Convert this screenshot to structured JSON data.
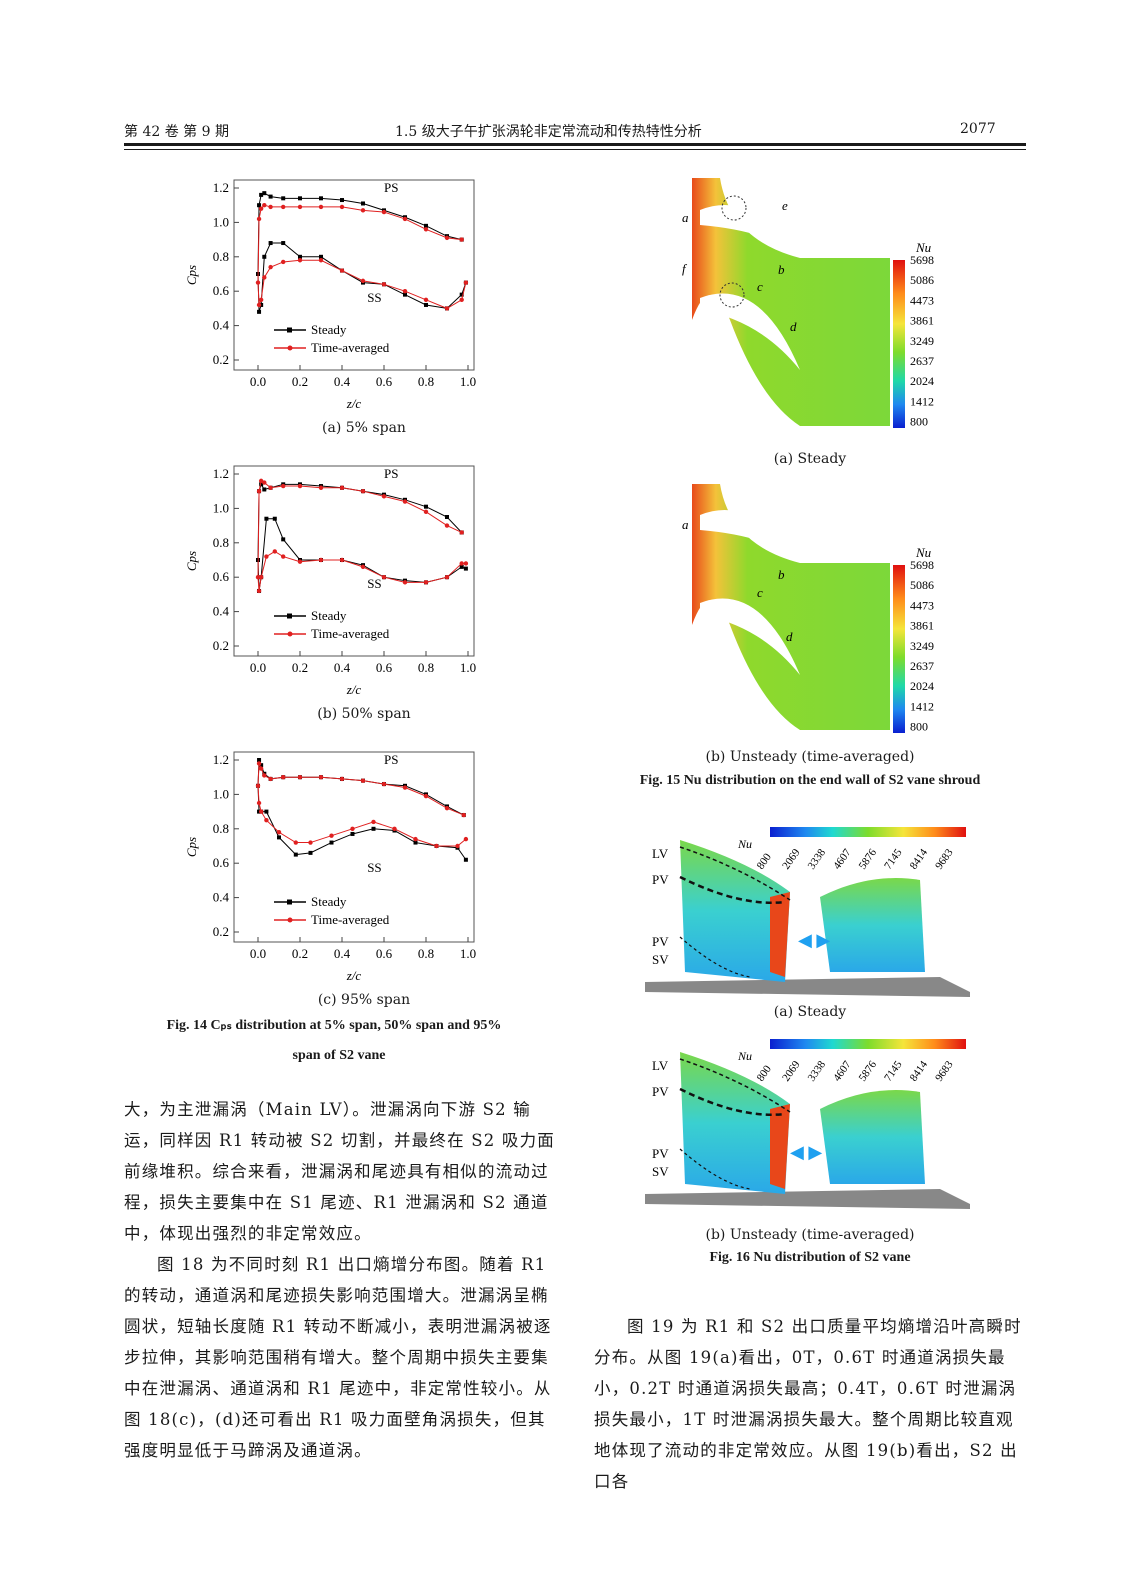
{
  "header": {
    "volume_issue": "第 42 卷   第 9 期",
    "title": "1.5 级大子午扩张涡轮非定常流动和传热特性分析",
    "page_number": "2077"
  },
  "fig14": {
    "panels": [
      {
        "label": "(a) 5% span",
        "ps_label": "PS",
        "ss_label": "SS"
      },
      {
        "label": "(b) 50% span",
        "ps_label": "PS",
        "ss_label": "SS"
      },
      {
        "label": "(c) 95% span",
        "ps_label": "PS",
        "ss_label": "SS"
      }
    ],
    "caption_line1": "Fig. 14    Cₚₛ distribution at 5% span, 50% span and 95%",
    "caption_line2": "span of S2 vane"
  },
  "fig15": {
    "panels": [
      {
        "label": "(a) Steady"
      },
      {
        "label": "(b) Unsteady (time-averaged)"
      }
    ],
    "annotations": [
      "a",
      "b",
      "c",
      "d",
      "e",
      "f"
    ],
    "colorbar_title": "Nu",
    "colorbar_ticks": [
      "5698",
      "5086",
      "4473",
      "3861",
      "3249",
      "2637",
      "2024",
      "1412",
      "800"
    ],
    "caption": "Fig. 15    Nu distribution on the end wall of S2 vane shroud"
  },
  "fig16": {
    "panels": [
      {
        "label": "(a) Steady"
      },
      {
        "label": "(b) Unsteady (time-averaged)"
      }
    ],
    "colorbar_title": "Nu",
    "colorbar_ticks": [
      "800",
      "2069",
      "3338",
      "4607",
      "5876",
      "7145",
      "8414",
      "9683"
    ],
    "vortex_labels": [
      "LV",
      "PV",
      "PV",
      "SV"
    ],
    "caption": "Fig. 16    Nu distribution of S2 vane"
  },
  "left_text": [
    "大，为主泄漏涡（Main LV）。泄漏涡向下游 S2 输运，同样因 R1 转动被 S2 切割，并最终在 S2 吸力面前缘堆积。综合来看，泄漏涡和尾迹具有相似的流动过程，损失主要集中在 S1 尾迹、R1 泄漏涡和 S2 通道中，体现出强烈的非定常效应。",
    "图 18 为不同时刻 R1 出口熵增分布图。随着 R1 的转动，通道涡和尾迹损失影响范围增大。泄漏涡呈椭圆状，短轴长度随 R1 转动不断减小，表明泄漏涡被逐步拉伸，其影响范围稍有增大。整个周期中损失主要集中在泄漏涡、通道涡和 R1 尾迹中，非定常性较小。从图 18(c)，(d)还可看出 R1 吸力面壁角涡损失，但其强度明显低于马蹄涡及通道涡。"
  ],
  "right_text": [
    "图 19 为 R1 和 S2 出口质量平均熵增沿叶高瞬时分布。从图 19(a)看出，0T，0.6T 时通道涡损失最小，0.2T 时通道涡损失最高；0.4T，0.6T 时泄漏涡损失最小，1T 时泄漏涡损失最大。整个周期比较直观地体现了流动的非定常效应。从图 19(b)看出，S2 出口各"
  ],
  "chart_data": [
    {
      "type": "line",
      "title": "(a) 5% span",
      "xlabel": "z/c",
      "ylabel": "Cps",
      "xlim": [
        0,
        1
      ],
      "ylim": [
        0.2,
        1.2
      ],
      "xticks": [
        "0.0",
        "0.2",
        "0.4",
        "0.6",
        "0.8",
        "1.0"
      ],
      "yticks": [
        "1.2",
        "1.0",
        "0.8",
        "0.6",
        "0.4",
        "0.2"
      ],
      "legend": [
        "Steady",
        "Time-averaged"
      ],
      "series": [
        {
          "name": "Steady",
          "color": "#000000",
          "x": [
            0.97,
            0.9,
            0.8,
            0.7,
            0.6,
            0.5,
            0.4,
            0.3,
            0.2,
            0.12,
            0.06,
            0.03,
            0.015,
            0.005,
            0.0,
            0.005,
            0.015,
            0.03,
            0.06,
            0.12,
            0.2,
            0.3,
            0.4,
            0.5,
            0.6,
            0.7,
            0.8,
            0.9,
            0.97,
            0.99
          ],
          "y": [
            0.9,
            0.92,
            0.98,
            1.03,
            1.07,
            1.11,
            1.13,
            1.14,
            1.14,
            1.14,
            1.15,
            1.17,
            1.16,
            1.1,
            0.7,
            0.48,
            0.52,
            0.8,
            0.88,
            0.88,
            0.8,
            0.8,
            0.72,
            0.65,
            0.64,
            0.58,
            0.52,
            0.5,
            0.58,
            0.65
          ]
        },
        {
          "name": "Time-averaged",
          "color": "#e02020",
          "x": [
            0.97,
            0.9,
            0.8,
            0.7,
            0.6,
            0.5,
            0.4,
            0.3,
            0.2,
            0.12,
            0.06,
            0.03,
            0.015,
            0.005,
            0.0,
            0.005,
            0.015,
            0.03,
            0.06,
            0.12,
            0.2,
            0.3,
            0.4,
            0.5,
            0.6,
            0.7,
            0.8,
            0.9,
            0.97,
            0.99
          ],
          "y": [
            0.9,
            0.91,
            0.96,
            1.02,
            1.06,
            1.07,
            1.09,
            1.09,
            1.09,
            1.09,
            1.09,
            1.1,
            1.08,
            1.02,
            0.65,
            0.52,
            0.55,
            0.68,
            0.74,
            0.77,
            0.78,
            0.78,
            0.72,
            0.66,
            0.64,
            0.6,
            0.55,
            0.5,
            0.55,
            0.65
          ]
        }
      ]
    },
    {
      "type": "line",
      "title": "(b) 50% span",
      "xlabel": "z/c",
      "ylabel": "Cps",
      "xlim": [
        0,
        1
      ],
      "ylim": [
        0.2,
        1.2
      ],
      "xticks": [
        "0.0",
        "0.2",
        "0.4",
        "0.6",
        "0.8",
        "1.0"
      ],
      "yticks": [
        "1.2",
        "1.0",
        "0.8",
        "0.6",
        "0.4",
        "0.2"
      ],
      "legend": [
        "Steady",
        "Time-averaged"
      ],
      "series": [
        {
          "name": "Steady",
          "color": "#000000",
          "x": [
            0.97,
            0.9,
            0.8,
            0.7,
            0.6,
            0.5,
            0.4,
            0.3,
            0.2,
            0.12,
            0.06,
            0.03,
            0.015,
            0.005,
            0.0,
            0.005,
            0.015,
            0.04,
            0.08,
            0.12,
            0.2,
            0.3,
            0.4,
            0.5,
            0.6,
            0.7,
            0.8,
            0.9,
            0.97,
            0.99
          ],
          "y": [
            0.86,
            0.95,
            1.01,
            1.05,
            1.08,
            1.1,
            1.12,
            1.13,
            1.14,
            1.14,
            1.12,
            1.11,
            1.14,
            1.1,
            0.7,
            0.52,
            0.6,
            0.94,
            0.94,
            0.82,
            0.7,
            0.7,
            0.7,
            0.67,
            0.6,
            0.58,
            0.57,
            0.6,
            0.66,
            0.65
          ]
        },
        {
          "name": "Time-averaged",
          "color": "#e02020",
          "x": [
            0.97,
            0.9,
            0.8,
            0.7,
            0.6,
            0.5,
            0.4,
            0.3,
            0.2,
            0.12,
            0.06,
            0.03,
            0.015,
            0.005,
            0.0,
            0.005,
            0.015,
            0.04,
            0.08,
            0.12,
            0.2,
            0.3,
            0.4,
            0.5,
            0.6,
            0.7,
            0.8,
            0.9,
            0.97,
            0.99
          ],
          "y": [
            0.86,
            0.9,
            0.98,
            1.04,
            1.07,
            1.1,
            1.12,
            1.12,
            1.13,
            1.13,
            1.12,
            1.15,
            1.16,
            1.1,
            0.6,
            0.52,
            0.6,
            0.72,
            0.75,
            0.72,
            0.69,
            0.7,
            0.7,
            0.66,
            0.6,
            0.57,
            0.57,
            0.6,
            0.68,
            0.68
          ]
        }
      ]
    },
    {
      "type": "line",
      "title": "(c) 95% span",
      "xlabel": "z/c",
      "ylabel": "Cps",
      "xlim": [
        0,
        1
      ],
      "ylim": [
        0.2,
        1.2
      ],
      "xticks": [
        "0.0",
        "0.2",
        "0.4",
        "0.6",
        "0.8",
        "1.0"
      ],
      "yticks": [
        "1.2",
        "1.0",
        "0.8",
        "0.6",
        "0.4",
        "0.2"
      ],
      "legend": [
        "Steady",
        "Time-averaged"
      ],
      "series": [
        {
          "name": "Steady",
          "color": "#000000",
          "x": [
            0.98,
            0.9,
            0.8,
            0.7,
            0.6,
            0.5,
            0.4,
            0.3,
            0.2,
            0.12,
            0.06,
            0.03,
            0.015,
            0.005,
            0.0,
            0.005,
            0.015,
            0.04,
            0.1,
            0.18,
            0.25,
            0.35,
            0.45,
            0.55,
            0.65,
            0.75,
            0.85,
            0.95,
            0.99
          ],
          "y": [
            0.88,
            0.93,
            1.0,
            1.05,
            1.06,
            1.08,
            1.09,
            1.1,
            1.1,
            1.1,
            1.09,
            1.12,
            1.17,
            1.2,
            1.05,
            0.9,
            0.9,
            0.9,
            0.75,
            0.65,
            0.66,
            0.72,
            0.77,
            0.8,
            0.79,
            0.72,
            0.7,
            0.69,
            0.62
          ]
        },
        {
          "name": "Time-averaged",
          "color": "#e02020",
          "x": [
            0.98,
            0.9,
            0.8,
            0.7,
            0.6,
            0.5,
            0.4,
            0.3,
            0.2,
            0.12,
            0.06,
            0.03,
            0.015,
            0.005,
            0.0,
            0.005,
            0.015,
            0.04,
            0.1,
            0.18,
            0.25,
            0.35,
            0.45,
            0.55,
            0.65,
            0.75,
            0.85,
            0.95,
            0.99
          ],
          "y": [
            0.88,
            0.92,
            0.99,
            1.04,
            1.06,
            1.08,
            1.09,
            1.1,
            1.1,
            1.1,
            1.09,
            1.11,
            1.15,
            1.18,
            1.05,
            0.95,
            0.9,
            0.85,
            0.78,
            0.72,
            0.72,
            0.76,
            0.8,
            0.84,
            0.8,
            0.74,
            0.7,
            0.7,
            0.74
          ]
        }
      ]
    }
  ]
}
